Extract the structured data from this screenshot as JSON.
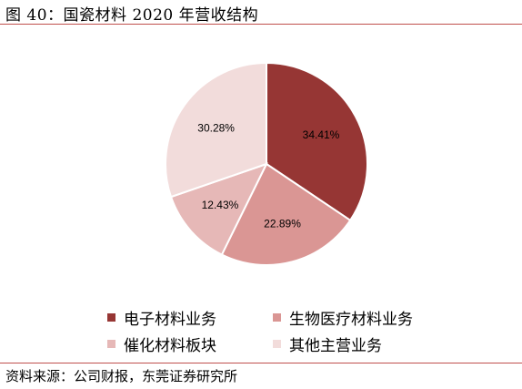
{
  "header": {
    "title": "图 40：国瓷材料 2020 年营收结构"
  },
  "footer": {
    "source": "资料来源：公司财报，东莞证券研究所"
  },
  "chart_data": {
    "type": "pie",
    "title": "",
    "slices": [
      {
        "name": "电子材料业务",
        "value": 34.41,
        "label": "34.41%",
        "color": "#963634"
      },
      {
        "name": "生物医疗材料业务",
        "value": 22.89,
        "label": "22.89%",
        "color": "#da9694"
      },
      {
        "name": "催化材料板块",
        "value": 12.43,
        "label": "12.43%",
        "color": "#e6b8b7"
      },
      {
        "name": "其他主营业务",
        "value": 30.28,
        "label": "30.28%",
        "color": "#f2dcdb"
      }
    ],
    "start_angle_deg": 0,
    "direction": "clockwise",
    "legend_position": "bottom"
  }
}
